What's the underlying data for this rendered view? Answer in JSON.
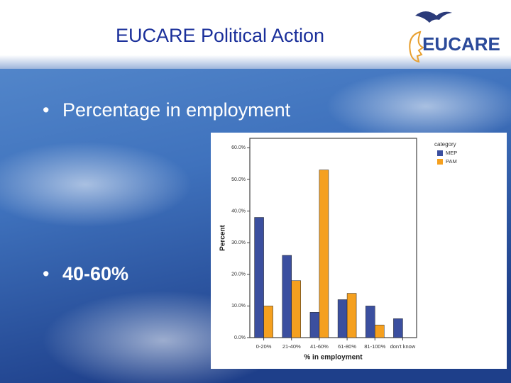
{
  "slide": {
    "title": "EUCARE Political Action",
    "logo": "EUCARE",
    "bullets": [
      "Percentage in employment",
      "40-60%"
    ]
  },
  "chart_data": {
    "type": "bar",
    "x_label": "% in employment",
    "y_label": "Percent",
    "legend_title": "category",
    "legend": "upper right",
    "categories": [
      "0-20%",
      "21-40%",
      "41-60%",
      "61-80%",
      "81-100%",
      "don't know"
    ],
    "series": [
      {
        "name": "MEP",
        "color": "#3b4f9f",
        "values": [
          38,
          26,
          8,
          12,
          10,
          6
        ]
      },
      {
        "name": "PAM",
        "color": "#f5a01f",
        "values": [
          10,
          18,
          53,
          14,
          4,
          null
        ]
      }
    ],
    "ylim": [
      0,
      63
    ],
    "yticks": [
      {
        "value": 0,
        "label": "0.0%"
      },
      {
        "value": 10,
        "label": "10.0%"
      },
      {
        "value": 20,
        "label": "20.0%"
      },
      {
        "value": 30,
        "label": "30.0%"
      },
      {
        "value": 40,
        "label": "40.0%"
      },
      {
        "value": 50,
        "label": "50.0%"
      },
      {
        "value": 60,
        "label": "60.0%"
      }
    ],
    "grid": false
  }
}
